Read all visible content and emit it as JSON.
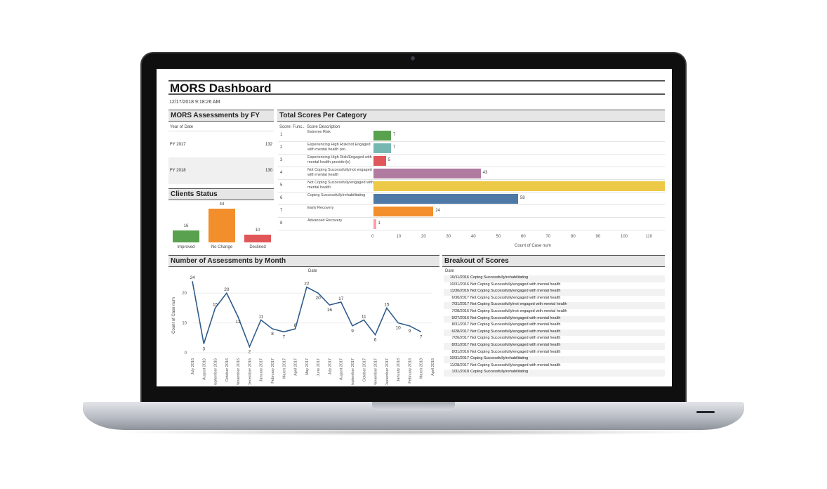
{
  "dashboard": {
    "title": "MORS Dashboard",
    "timestamp": "12/17/2018 9:18:26 AM"
  },
  "fy_panel": {
    "title": "MORS Assessments by FY",
    "col_header": "Year of Date",
    "rows": [
      {
        "label": "FY 2017",
        "value": "132"
      },
      {
        "label": "FY 2018",
        "value": "130"
      }
    ]
  },
  "status_panel": {
    "title": "Clients Status",
    "bars": [
      {
        "label": "Improved",
        "value": 16,
        "value_text": "16",
        "color": "#59a14f"
      },
      {
        "label": "No Change",
        "value": 44,
        "value_text": "44",
        "color": "#f28e2b"
      },
      {
        "label": "Declined",
        "value": 10,
        "value_text": "10",
        "color": "#e15759"
      }
    ]
  },
  "scores_panel": {
    "title": "Total Scores Per Category",
    "col1": "Score: Func..",
    "col2": "Score Description",
    "x_axis_title": "Count of Case num",
    "ticks": [
      "0",
      "10",
      "20",
      "30",
      "40",
      "50",
      "60",
      "70",
      "80",
      "90",
      "100",
      "110"
    ],
    "rows": [
      {
        "num": "1",
        "desc": "Extreme Risk",
        "value": 7,
        "value_text": "7",
        "color": "#59a14f"
      },
      {
        "num": "2",
        "desc": "Experiencing High Risk/not Engaged with mental health pro..",
        "value": 7,
        "value_text": "7",
        "color": "#76b7b2"
      },
      {
        "num": "3",
        "desc": "Experiencing High Risk/Engaged with mental health provider(s)",
        "value": 5,
        "value_text": "5",
        "color": "#e15759"
      },
      {
        "num": "4",
        "desc": "Not Coping Successfully/not engaged with mental health",
        "value": 43,
        "value_text": "43",
        "color": "#b07aa1"
      },
      {
        "num": "5",
        "desc": "Not Coping Successfully/engaged with mental health",
        "value": 118,
        "value_text": "",
        "color": "#edc948"
      },
      {
        "num": "6",
        "desc": "Coping Successfully/rehabilitating",
        "value": 58,
        "value_text": "58",
        "color": "#4e79a7"
      },
      {
        "num": "7",
        "desc": "Early Recovery",
        "value": 24,
        "value_text": "24",
        "color": "#f28e2b"
      },
      {
        "num": "8",
        "desc": "Advanced Recovery",
        "value": 1,
        "value_text": "1",
        "color": "#ff9da7"
      }
    ]
  },
  "month_panel": {
    "title": "Number of Assessments by Month",
    "x_header": "Date",
    "y_title": "Count of Case num",
    "y_ticks": [
      "0",
      "10",
      "20"
    ]
  },
  "breakout_panel": {
    "title": "Breakout of Scores",
    "col_header": "Date",
    "rows": [
      {
        "date": "10/11/2016",
        "desc": "Coping Successfully/rehabilitating"
      },
      {
        "date": "10/31/2016",
        "desc": "Not Coping Successfully/engaged with mental health"
      },
      {
        "date": "11/30/2016",
        "desc": "Not Coping Successfully/engaged with mental health"
      },
      {
        "date": "6/30/2017",
        "desc": "Not Coping Successfully/engaged with mental health"
      },
      {
        "date": "7/31/2017",
        "desc": "Not Coping Successfully/not engaged with mental health"
      },
      {
        "date": "7/28/2016",
        "desc": "Not Coping Successfully/not engaged with mental health"
      },
      {
        "date": "9/27/2016",
        "desc": "Not Coping Successfully/engaged with mental health"
      },
      {
        "date": "8/31/2017",
        "desc": "Not Coping Successfully/engaged with mental health"
      },
      {
        "date": "6/28/2017",
        "desc": "Not Coping Successfully/engaged with mental health"
      },
      {
        "date": "7/26/2017",
        "desc": "Not Coping Successfully/engaged with mental health"
      },
      {
        "date": "8/31/2017",
        "desc": "Not Coping Successfully/engaged with mental health"
      },
      {
        "date": "8/31/2016",
        "desc": "Not Coping Successfully/engaged with mental health"
      },
      {
        "date": "10/31/2017",
        "desc": "Coping Successfully/rehabilitating"
      },
      {
        "date": "11/28/2017",
        "desc": "Not Coping Successfully/engaged with mental health"
      },
      {
        "date": "1/31/2018",
        "desc": "Coping Successfully/rehabilitating"
      }
    ]
  },
  "chart_data": [
    {
      "type": "line",
      "title": "Number of Assessments by Month",
      "xlabel": "Date",
      "ylabel": "Count of Case num",
      "ylim": [
        0,
        25
      ],
      "x": [
        "July 2016",
        "August 2016",
        "September 2016",
        "October 2016",
        "November 2016",
        "December 2016",
        "January 2017",
        "February 2017",
        "March 2017",
        "April 2017",
        "May 2017",
        "June 2017",
        "July 2017",
        "August 2017",
        "September 2017",
        "October 2017",
        "November 2017",
        "December 2017",
        "January 2018",
        "February 2018",
        "March 2018",
        "April 2018"
      ],
      "series": [
        {
          "values": [
            24,
            3,
            15,
            20,
            12,
            2,
            11,
            8,
            7,
            8,
            22,
            20,
            16,
            17,
            9,
            11,
            6,
            15,
            10,
            9,
            7,
            null
          ]
        }
      ]
    },
    {
      "type": "bar",
      "title": "Clients Status",
      "categories": [
        "Improved",
        "No Change",
        "Declined"
      ],
      "values": [
        16,
        44,
        10
      ]
    },
    {
      "type": "bar",
      "title": "Total Scores Per Category",
      "xlabel": "Count of Case num",
      "categories": [
        "Extreme Risk",
        "Experiencing High Risk/not Engaged with mental health pro..",
        "Experiencing High Risk/Engaged with mental health provider(s)",
        "Not Coping Successfully/not engaged with mental health",
        "Not Coping Successfully/engaged with mental health",
        "Coping Successfully/rehabilitating",
        "Early Recovery",
        "Advanced Recovery"
      ],
      "values": [
        7,
        7,
        5,
        43,
        118,
        58,
        24,
        1
      ],
      "xlim": [
        0,
        118
      ]
    }
  ]
}
